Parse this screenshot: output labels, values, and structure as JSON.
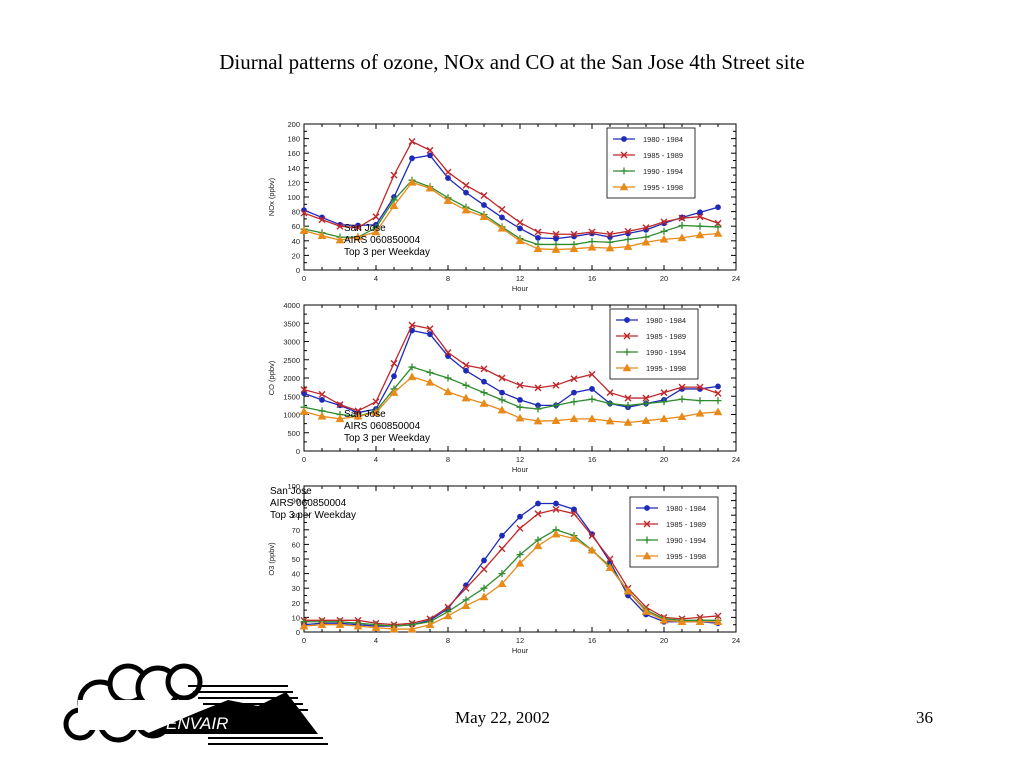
{
  "slide": {
    "title": "Diurnal  patterns of ozone, NOx and CO at the San Jose 4th Street site",
    "date": "May 22, 2002",
    "page_number": "36",
    "logo_text": "ENVAIR"
  },
  "colors": {
    "1980 - 1984": "#1f2bb8",
    "1985 - 1989": "#c0282a",
    "1990 - 1994": "#2e8b2e",
    "1995 - 1998": "#e88a1a"
  },
  "chart_data": [
    {
      "type": "line",
      "id": "nox",
      "xlabel": "Hour",
      "ylabel": "NOx (ppbv)",
      "xlim": [
        0,
        24
      ],
      "xticks": [
        0,
        4,
        8,
        12,
        16,
        20,
        24
      ],
      "ylim": [
        0,
        200
      ],
      "yticks": [
        0,
        20,
        40,
        60,
        80,
        100,
        120,
        140,
        160,
        180,
        200
      ],
      "legend_position": "top-right",
      "annotation": [
        "San Jose",
        "AIRS 060850004",
        "Top 3 per Weekday"
      ],
      "annotation_position": "bottom-left",
      "x": [
        0,
        1,
        2,
        3,
        4,
        5,
        6,
        7,
        8,
        9,
        10,
        11,
        12,
        13,
        14,
        15,
        16,
        17,
        18,
        19,
        20,
        21,
        22,
        23
      ],
      "series": [
        {
          "name": "1980 - 1984",
          "marker": "circle",
          "values": [
            82,
            72,
            62,
            61,
            62,
            100,
            153,
            157,
            126,
            106,
            89,
            72,
            57,
            44,
            43,
            46,
            50,
            45,
            50,
            55,
            64,
            72,
            79,
            86
          ]
        },
        {
          "name": "1985 - 1989",
          "marker": "x",
          "values": [
            78,
            69,
            60,
            58,
            73,
            130,
            176,
            164,
            134,
            116,
            102,
            83,
            65,
            52,
            49,
            49,
            52,
            49,
            53,
            58,
            66,
            71,
            73,
            64
          ]
        },
        {
          "name": "1990 - 1994",
          "marker": "plus",
          "values": [
            56,
            51,
            45,
            45,
            58,
            96,
            123,
            114,
            99,
            86,
            76,
            59,
            43,
            35,
            35,
            35,
            39,
            38,
            42,
            45,
            53,
            61,
            60,
            59
          ]
        },
        {
          "name": "1995 - 1998",
          "marker": "triangle",
          "values": [
            54,
            47,
            41,
            45,
            52,
            88,
            120,
            112,
            95,
            82,
            73,
            57,
            40,
            29,
            28,
            29,
            31,
            30,
            32,
            38,
            42,
            44,
            48,
            50
          ]
        }
      ]
    },
    {
      "type": "line",
      "id": "co",
      "xlabel": "Hour",
      "ylabel": "CO (ppbv)",
      "xlim": [
        0,
        24
      ],
      "xticks": [
        0,
        4,
        8,
        12,
        16,
        20,
        24
      ],
      "ylim": [
        0,
        4000
      ],
      "yticks": [
        0,
        500,
        1000,
        1500,
        2000,
        2500,
        3000,
        3500,
        4000
      ],
      "legend_position": "top-right",
      "annotation": [
        "San Jose",
        "AIRS 060850004",
        "Top 3 per Weekday"
      ],
      "annotation_position": "bottom-left",
      "x": [
        0,
        1,
        2,
        3,
        4,
        5,
        6,
        7,
        8,
        9,
        10,
        11,
        12,
        13,
        14,
        15,
        16,
        17,
        18,
        19,
        20,
        21,
        22,
        23
      ],
      "series": [
        {
          "name": "1980 - 1984",
          "marker": "circle",
          "values": [
            1580,
            1400,
            1250,
            1050,
            1150,
            2050,
            3300,
            3200,
            2600,
            2200,
            1900,
            1600,
            1400,
            1250,
            1250,
            1600,
            1700,
            1300,
            1200,
            1300,
            1400,
            1700,
            1700,
            1770
          ]
        },
        {
          "name": "1985 - 1989",
          "marker": "x",
          "values": [
            1680,
            1550,
            1270,
            1100,
            1350,
            2400,
            3450,
            3350,
            2700,
            2350,
            2250,
            2000,
            1800,
            1730,
            1800,
            1980,
            2100,
            1600,
            1450,
            1450,
            1600,
            1750,
            1750,
            1580
          ]
        },
        {
          "name": "1990 - 1994",
          "marker": "plus",
          "values": [
            1200,
            1100,
            1000,
            950,
            1100,
            1700,
            2300,
            2150,
            2000,
            1800,
            1600,
            1400,
            1200,
            1150,
            1250,
            1350,
            1420,
            1300,
            1250,
            1300,
            1350,
            1420,
            1380,
            1380
          ]
        },
        {
          "name": "1995 - 1998",
          "marker": "triangle",
          "values": [
            1080,
            950,
            880,
            950,
            1050,
            1600,
            2030,
            1880,
            1620,
            1450,
            1300,
            1120,
            900,
            820,
            830,
            880,
            880,
            820,
            780,
            830,
            880,
            940,
            1030,
            1070
          ]
        }
      ]
    },
    {
      "type": "line",
      "id": "o3",
      "xlabel": "Hour",
      "ylabel": "O3 (ppbv)",
      "xlim": [
        0,
        24
      ],
      "xticks": [
        0,
        4,
        8,
        12,
        16,
        20,
        24
      ],
      "ylim": [
        0,
        100
      ],
      "yticks": [
        0,
        10,
        20,
        30,
        40,
        50,
        60,
        70,
        80,
        90,
        100
      ],
      "legend_position": "right",
      "annotation": [
        "San Jose",
        "AIRS 060850004",
        "Top 3 per Weekday"
      ],
      "annotation_position": "top-left",
      "x": [
        0,
        1,
        2,
        3,
        4,
        5,
        6,
        7,
        8,
        9,
        10,
        11,
        12,
        13,
        14,
        15,
        16,
        17,
        18,
        19,
        20,
        21,
        22,
        23
      ],
      "series": [
        {
          "name": "1980 - 1984",
          "marker": "circle",
          "values": [
            5,
            6,
            6,
            5,
            4,
            4,
            5,
            8,
            16,
            32,
            49,
            66,
            79,
            88,
            88,
            84,
            67,
            48,
            25,
            12,
            7,
            7,
            7,
            6
          ]
        },
        {
          "name": "1985 - 1989",
          "marker": "x",
          "values": [
            8,
            8,
            8,
            8,
            6,
            5,
            6,
            9,
            17,
            30,
            43,
            57,
            71,
            81,
            84,
            81,
            66,
            50,
            30,
            17,
            10,
            9,
            10,
            11
          ]
        },
        {
          "name": "1990 - 1994",
          "marker": "plus",
          "values": [
            7,
            7,
            7,
            6,
            5,
            4,
            5,
            7,
            14,
            22,
            30,
            40,
            53,
            63,
            70,
            66,
            56,
            45,
            28,
            15,
            9,
            8,
            8,
            8
          ]
        },
        {
          "name": "1995 - 1998",
          "marker": "triangle",
          "values": [
            4,
            5,
            5,
            4,
            3,
            2,
            2,
            5,
            11,
            18,
            24,
            33,
            47,
            59,
            67,
            64,
            56,
            44,
            28,
            14,
            8,
            7,
            7,
            7
          ]
        }
      ]
    }
  ]
}
